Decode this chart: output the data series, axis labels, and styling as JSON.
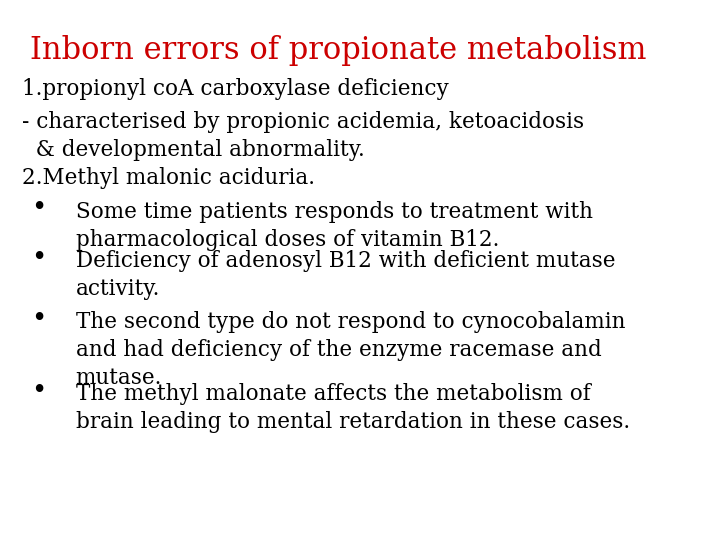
{
  "title": "Inborn errors of propionate metabolism",
  "title_color": "#cc0000",
  "title_fontsize": 22,
  "background_color": "#ffffff",
  "text_color": "#000000",
  "body_fontsize": 15.5,
  "font_family": "DejaVu Serif",
  "lines": [
    {
      "text": "1.propionyl coA carboxylase deficiency",
      "fx": 0.03,
      "fy": 0.855,
      "bullet": false
    },
    {
      "text": "- characterised by propionic acidemia, ketoacidosis",
      "fx": 0.03,
      "fy": 0.795,
      "bullet": false
    },
    {
      "text": "  & developmental abnormality.",
      "fx": 0.03,
      "fy": 0.743,
      "bullet": false
    },
    {
      "text": "2.Methyl malonic aciduria.",
      "fx": 0.03,
      "fy": 0.69,
      "bullet": false
    },
    {
      "text": "Some time patients responds to treatment with\npharmacological doses of vitamin B12.",
      "fx": 0.105,
      "fy": 0.628,
      "bullet": true,
      "bx": 0.043,
      "by": 0.638
    },
    {
      "text": "Deficiency of adenosyl B12 with deficient mutase\nactivity.",
      "fx": 0.105,
      "fy": 0.537,
      "bullet": true,
      "bx": 0.043,
      "by": 0.547
    },
    {
      "text": "The second type do not respond to cynocobalamin\nand had deficiency of the enzyme racemase and\nmutase.",
      "fx": 0.105,
      "fy": 0.424,
      "bullet": true,
      "bx": 0.043,
      "by": 0.434
    },
    {
      "text": "The methyl malonate affects the metabolism of\nbrain leading to mental retardation in these cases.",
      "fx": 0.105,
      "fy": 0.29,
      "bullet": true,
      "bx": 0.043,
      "by": 0.3
    }
  ]
}
